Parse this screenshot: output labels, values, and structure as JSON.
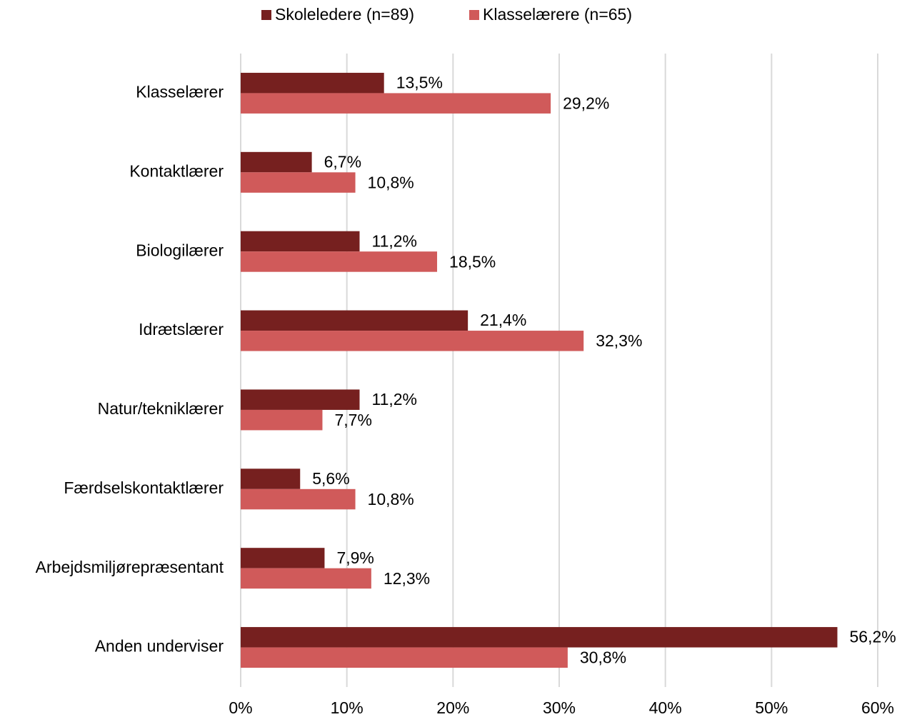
{
  "chart_data": {
    "type": "hbar",
    "categories": [
      "Klasselærer",
      "Kontaktlærer",
      "Biologilærer",
      "Idrætslærer",
      "Natur/tekniklærer",
      "Færdselskontaktlærer",
      "Arbejdsmiljørepræsentant",
      "Anden underviser"
    ],
    "series": [
      {
        "name": "Skoleledere (n=89)",
        "color": "#76201f",
        "values": [
          13.5,
          6.7,
          11.2,
          21.4,
          11.2,
          5.6,
          7.9,
          56.2
        ],
        "value_labels": [
          "13,5%",
          "6,7%",
          "11,2%",
          "21,4%",
          "11,2%",
          "5,6%",
          "7,9%",
          "56,2%"
        ]
      },
      {
        "name": "Klasselærere (n=65)",
        "color": "#d05a5a",
        "values": [
          29.2,
          10.8,
          18.5,
          32.3,
          7.7,
          10.8,
          12.3,
          30.8
        ],
        "value_labels": [
          "29,2%",
          "10,8%",
          "18,5%",
          "32,3%",
          "7,7%",
          "10,8%",
          "12,3%",
          "30,8%"
        ]
      }
    ],
    "xlim": [
      0,
      60
    ],
    "xticks": [
      {
        "value": 0,
        "label": "0%"
      },
      {
        "value": 10,
        "label": "10%"
      },
      {
        "value": 20,
        "label": "20%"
      },
      {
        "value": 30,
        "label": "30%"
      },
      {
        "value": 40,
        "label": "40%"
      },
      {
        "value": 50,
        "label": "50%"
      },
      {
        "value": 60,
        "label": "60%"
      }
    ],
    "grid": true,
    "legend": "top"
  }
}
